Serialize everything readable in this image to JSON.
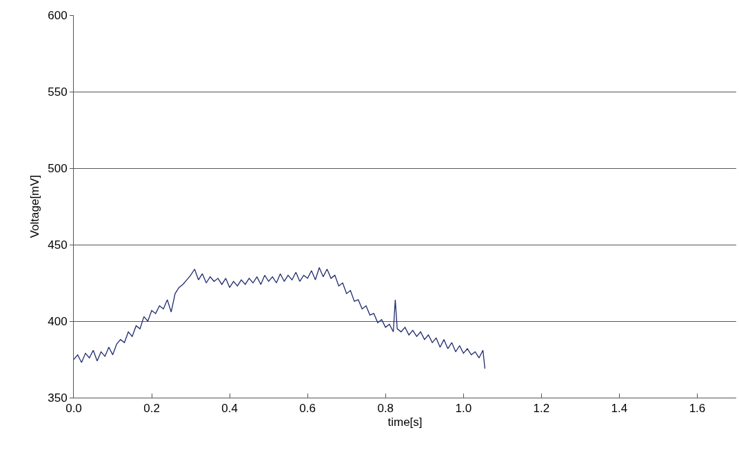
{
  "chart_data": {
    "type": "line",
    "xlabel": "time[s]",
    "ylabel": "Voltage[mV]",
    "x": [
      0.0,
      0.01,
      0.02,
      0.03,
      0.04,
      0.05,
      0.06,
      0.07,
      0.08,
      0.09,
      0.1,
      0.11,
      0.12,
      0.13,
      0.14,
      0.15,
      0.16,
      0.17,
      0.18,
      0.19,
      0.2,
      0.21,
      0.22,
      0.23,
      0.24,
      0.25,
      0.26,
      0.27,
      0.28,
      0.29,
      0.3,
      0.31,
      0.32,
      0.33,
      0.34,
      0.35,
      0.36,
      0.37,
      0.38,
      0.39,
      0.4,
      0.41,
      0.42,
      0.43,
      0.44,
      0.45,
      0.46,
      0.47,
      0.48,
      0.49,
      0.5,
      0.51,
      0.52,
      0.53,
      0.54,
      0.55,
      0.56,
      0.57,
      0.58,
      0.59,
      0.6,
      0.61,
      0.62,
      0.63,
      0.64,
      0.65,
      0.66,
      0.67,
      0.68,
      0.69,
      0.7,
      0.71,
      0.72,
      0.73,
      0.74,
      0.75,
      0.76,
      0.77,
      0.78,
      0.79,
      0.8,
      0.81,
      0.82,
      0.825,
      0.83,
      0.84,
      0.85,
      0.86,
      0.87,
      0.88,
      0.89,
      0.9,
      0.91,
      0.92,
      0.93,
      0.94,
      0.95,
      0.96,
      0.97,
      0.98,
      0.99,
      1.0,
      1.01,
      1.02,
      1.03,
      1.04,
      1.05,
      1.055
    ],
    "series": [
      {
        "color": "#1f2a6e",
        "values": [
          375,
          378,
          373,
          379,
          376,
          381,
          374,
          380,
          377,
          383,
          378,
          385,
          388,
          386,
          393,
          390,
          397,
          395,
          403,
          400,
          407,
          405,
          410,
          408,
          414,
          406,
          418,
          422,
          424,
          427,
          430,
          434,
          427,
          431,
          425,
          429,
          426,
          428,
          424,
          428,
          422,
          426,
          423,
          427,
          424,
          428,
          425,
          429,
          424,
          430,
          426,
          429,
          425,
          431,
          426,
          430,
          427,
          432,
          426,
          430,
          428,
          433,
          427,
          435,
          429,
          434,
          428,
          430,
          423,
          425,
          418,
          420,
          413,
          414,
          408,
          410,
          404,
          405,
          399,
          401,
          396,
          398,
          393,
          414,
          395,
          393,
          396,
          391,
          394,
          390,
          393,
          388,
          391,
          386,
          389,
          383,
          388,
          382,
          386,
          380,
          384,
          379,
          382,
          378,
          380,
          376,
          381,
          369
        ]
      }
    ],
    "xlim": [
      0,
      1.7
    ],
    "xticks": [
      {
        "value": 0,
        "label": "0.0"
      },
      {
        "value": 0.2,
        "label": "0.2"
      },
      {
        "value": 0.4,
        "label": "0.4"
      },
      {
        "value": 0.6,
        "label": "0.6"
      },
      {
        "value": 0.8,
        "label": "0.8"
      },
      {
        "value": 1.0,
        "label": "1.0"
      },
      {
        "value": 1.2,
        "label": "1.2"
      },
      {
        "value": 1.4,
        "label": "1.4"
      },
      {
        "value": 1.6,
        "label": "1.6"
      }
    ],
    "ylim": [
      350,
      600
    ],
    "yticks": [
      350,
      400,
      450,
      500,
      550,
      600
    ],
    "grid": "y",
    "marker": "none",
    "line_style": "solid"
  }
}
